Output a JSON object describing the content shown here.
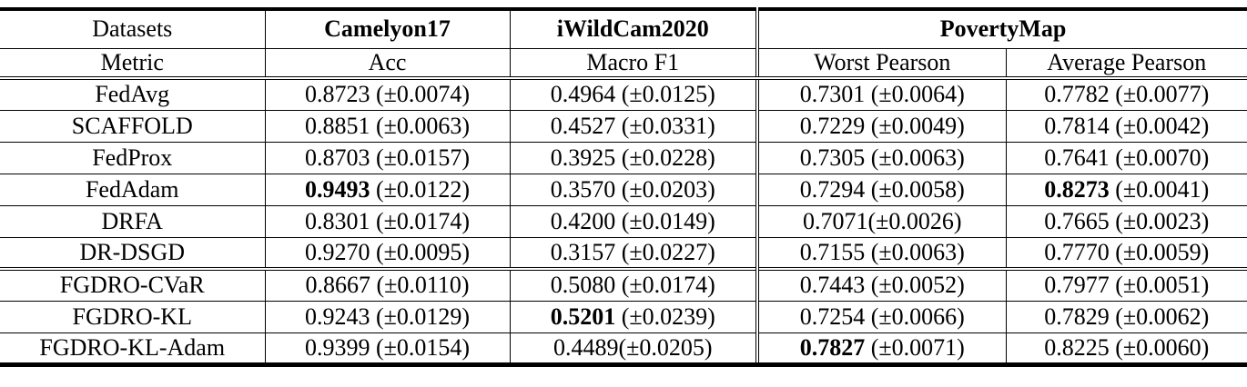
{
  "table": {
    "header": {
      "datasets_label": "Datasets",
      "metric_label": "Metric",
      "groups": [
        {
          "label": "Camelyon17",
          "metrics": [
            "Acc"
          ]
        },
        {
          "label": "iWildCam2020",
          "metrics": [
            "Macro F1"
          ]
        },
        {
          "label": "PovertyMap",
          "metrics": [
            "Worst Pearson",
            "Average Pearson"
          ]
        }
      ]
    },
    "rows": [
      {
        "method": "FedAvg",
        "new_section": false,
        "cells": [
          {
            "num": "0.8723",
            "rest": " (±0.0074)",
            "bold": false
          },
          {
            "num": "0.4964",
            "rest": " (±0.0125)",
            "bold": false
          },
          {
            "num": "0.7301",
            "rest": " (±0.0064)",
            "bold": false
          },
          {
            "num": "0.7782",
            "rest": " (±0.0077)",
            "bold": false
          }
        ]
      },
      {
        "method": "SCAFFOLD",
        "new_section": false,
        "cells": [
          {
            "num": "0.8851",
            "rest": " (±0.0063)",
            "bold": false
          },
          {
            "num": "0.4527",
            "rest": " (±0.0331)",
            "bold": false
          },
          {
            "num": "0.7229",
            "rest": " (±0.0049)",
            "bold": false
          },
          {
            "num": "0.7814",
            "rest": " (±0.0042)",
            "bold": false
          }
        ]
      },
      {
        "method": "FedProx",
        "new_section": false,
        "cells": [
          {
            "num": "0.8703",
            "rest": " (±0.0157)",
            "bold": false
          },
          {
            "num": "0.3925",
            "rest": " (±0.0228)",
            "bold": false
          },
          {
            "num": "0.7305",
            "rest": " (±0.0063)",
            "bold": false
          },
          {
            "num": "0.7641",
            "rest": " (±0.0070)",
            "bold": false
          }
        ]
      },
      {
        "method": "FedAdam",
        "new_section": false,
        "cells": [
          {
            "num": "0.9493",
            "rest": " (±0.0122)",
            "bold": true
          },
          {
            "num": "0.3570",
            "rest": " (±0.0203)",
            "bold": false
          },
          {
            "num": "0.7294",
            "rest": " (±0.0058)",
            "bold": false
          },
          {
            "num": "0.8273",
            "rest": " (±0.0041)",
            "bold": true
          }
        ]
      },
      {
        "method": "DRFA",
        "new_section": false,
        "cells": [
          {
            "num": "0.8301",
            "rest": " (±0.0174)",
            "bold": false
          },
          {
            "num": "0.4200",
            "rest": " (±0.0149)",
            "bold": false
          },
          {
            "num": "0.7071",
            "rest": "(±0.0026)",
            "bold": false
          },
          {
            "num": "0.7665",
            "rest": " (±0.0023)",
            "bold": false
          }
        ]
      },
      {
        "method": "DR-DSGD",
        "new_section": false,
        "cells": [
          {
            "num": "0.9270",
            "rest": " (±0.0095)",
            "bold": false
          },
          {
            "num": "0.3157",
            "rest": " (±0.0227)",
            "bold": false
          },
          {
            "num": "0.7155",
            "rest": " (±0.0063)",
            "bold": false
          },
          {
            "num": "0.7770",
            "rest": " (±0.0059)",
            "bold": false
          }
        ]
      },
      {
        "method": "FGDRO-CVaR",
        "new_section": true,
        "cells": [
          {
            "num": "0.8667",
            "rest": " (±0.0110)",
            "bold": false
          },
          {
            "num": "0.5080",
            "rest": " (±0.0174)",
            "bold": false
          },
          {
            "num": "0.7443",
            "rest": " (±0.0052)",
            "bold": false
          },
          {
            "num": "0.7977",
            "rest": " (±0.0051)",
            "bold": false
          }
        ]
      },
      {
        "method": "FGDRO-KL",
        "new_section": false,
        "cells": [
          {
            "num": "0.9243",
            "rest": " (±0.0129)",
            "bold": false
          },
          {
            "num": "0.5201",
            "rest": " (±0.0239)",
            "bold": true
          },
          {
            "num": "0.7254",
            "rest": " (±0.0066)",
            "bold": false
          },
          {
            "num": "0.7829",
            "rest": " (±0.0062)",
            "bold": false
          }
        ]
      },
      {
        "method": "FGDRO-KL-Adam",
        "new_section": false,
        "cells": [
          {
            "num": "0.9399",
            "rest": " (±0.0154)",
            "bold": false
          },
          {
            "num": "0.4489",
            "rest": "(±0.0205)",
            "bold": false
          },
          {
            "num": "0.7827",
            "rest": " (±0.0071)",
            "bold": true
          },
          {
            "num": "0.8225",
            "rest": " (±0.0060)",
            "bold": false
          }
        ]
      }
    ]
  }
}
